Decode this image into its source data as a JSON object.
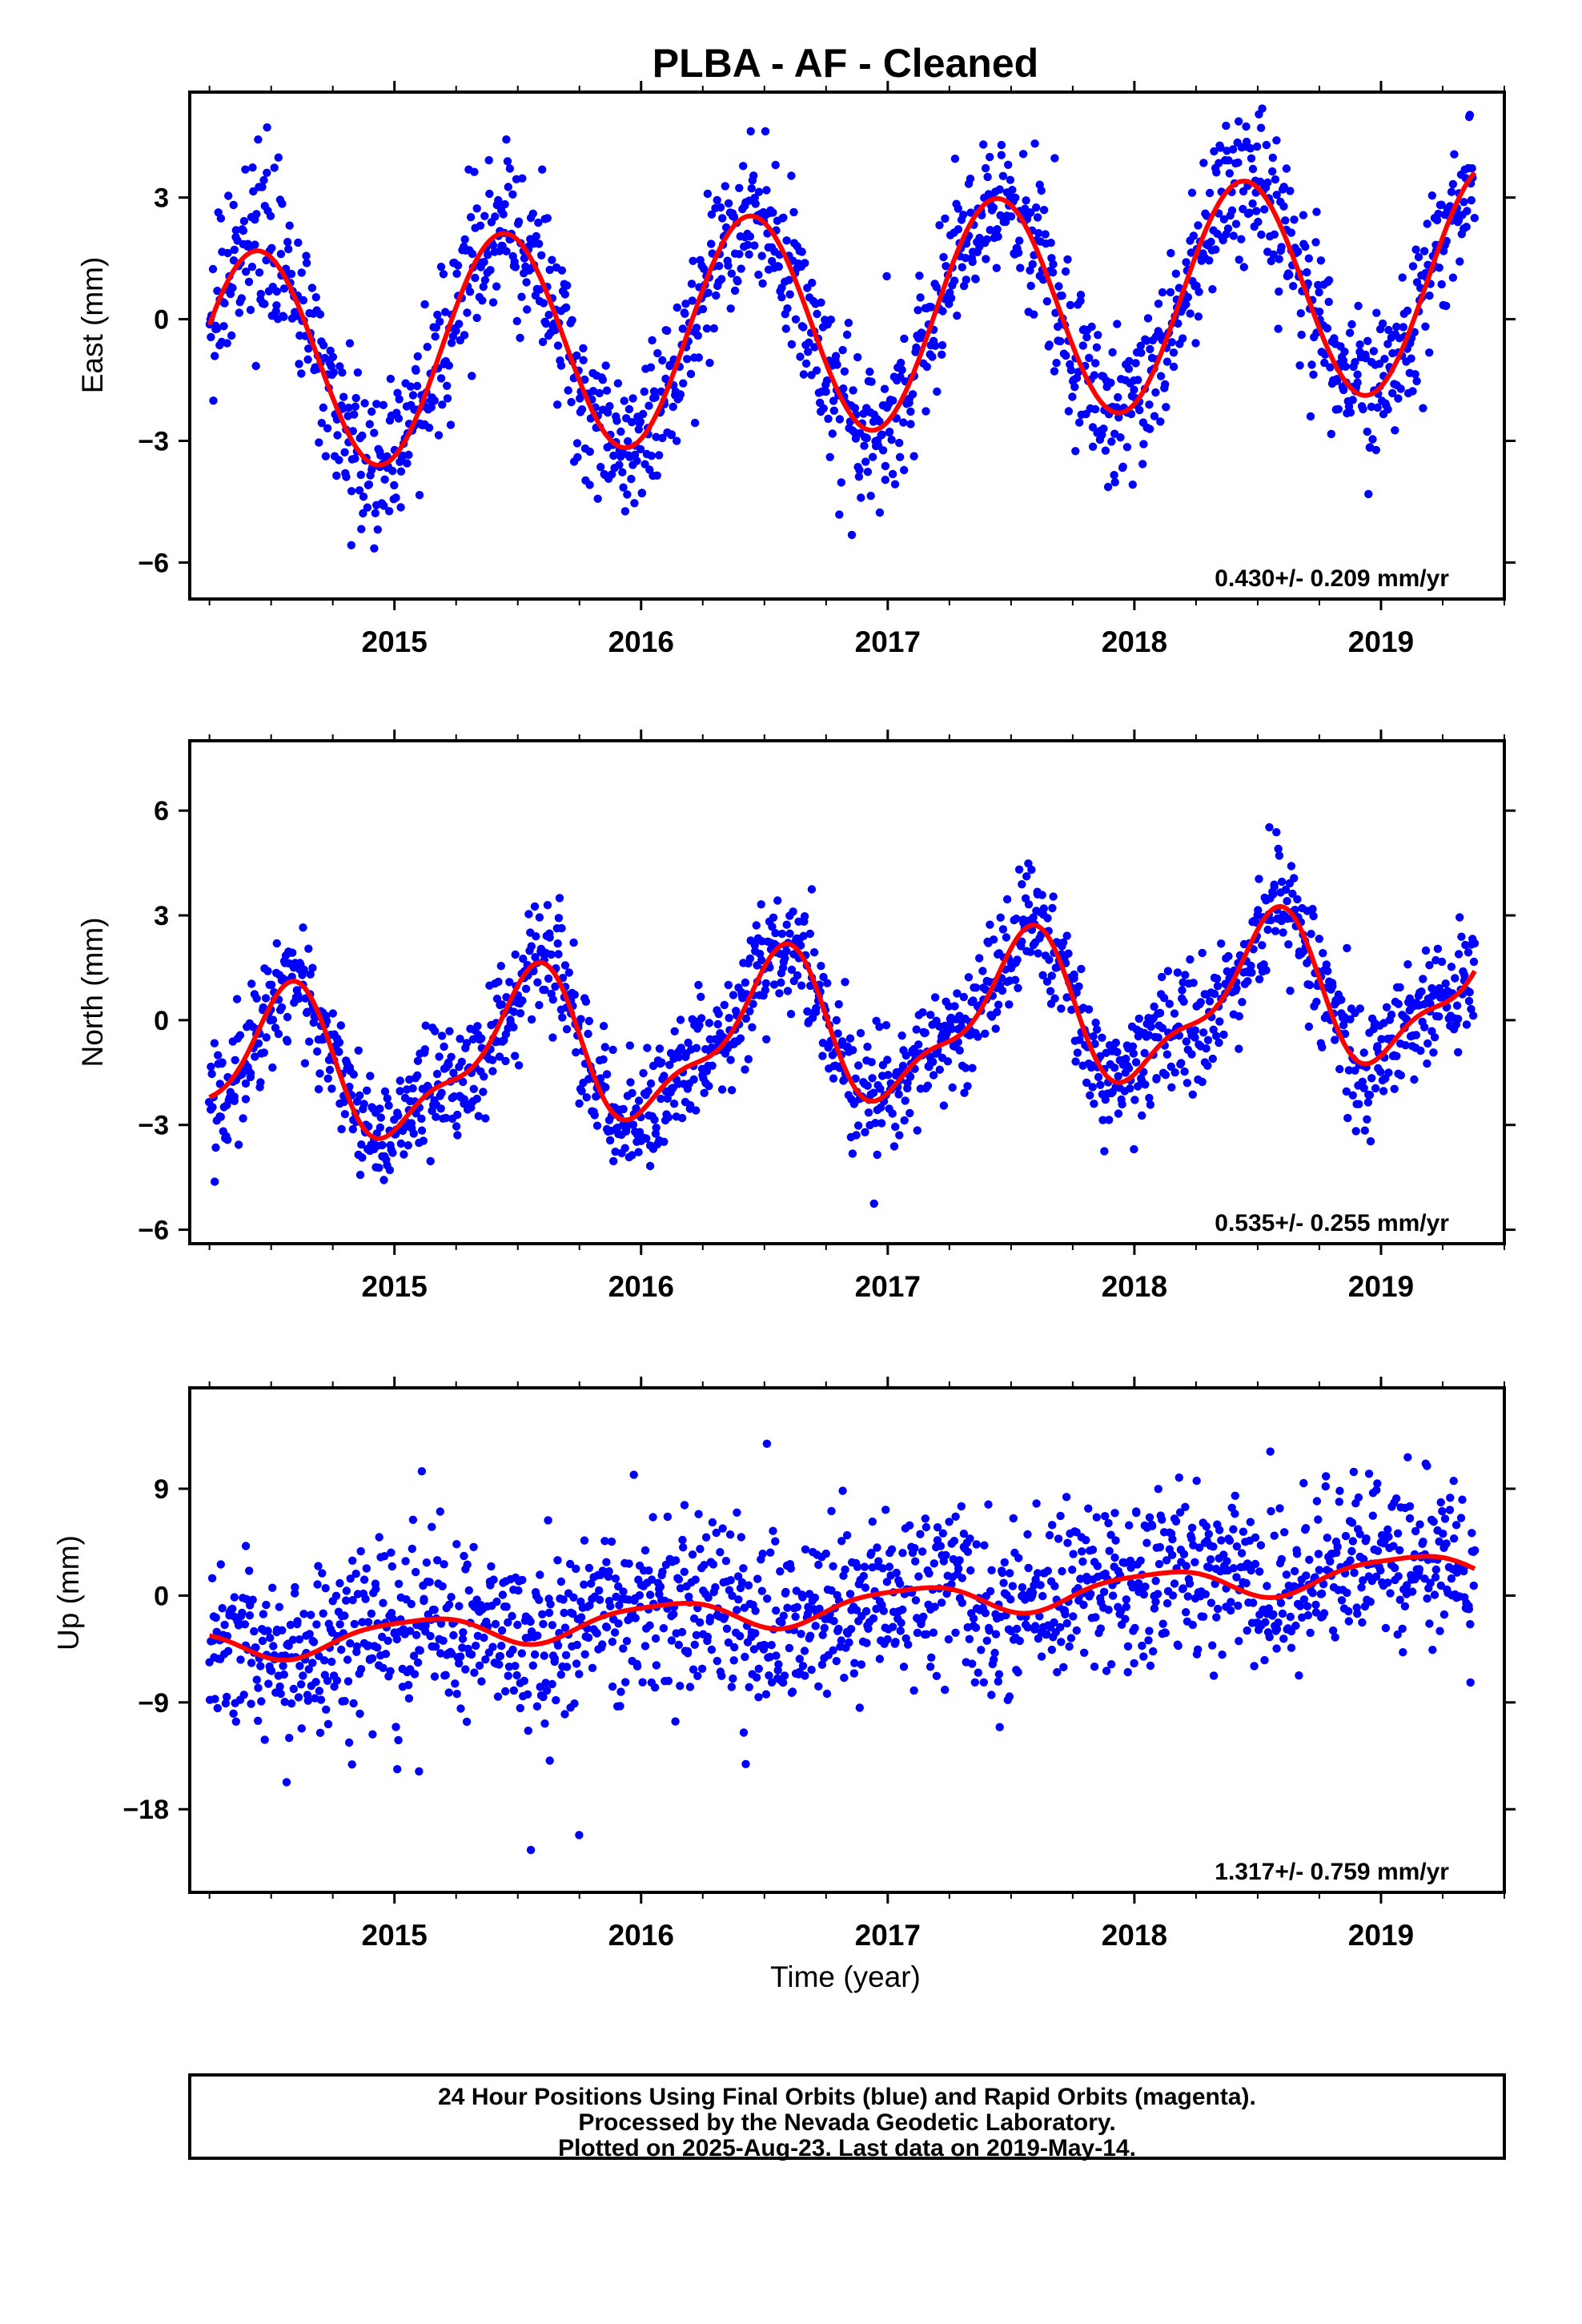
{
  "title": "PLBA  - AF - Cleaned",
  "footer": {
    "line1": "24 Hour Positions Using Final Orbits (blue) and Rapid Orbits (magenta).",
    "line2": "Processed by the Nevada Geodetic Laboratory.",
    "line3": "Plotted on 2025-Aug-23. Last data on 2019-May-14."
  },
  "colors": {
    "data_points": "#0000ff",
    "model_curve": "#ff0000",
    "axes": "#000000"
  },
  "chart_data": [
    {
      "type": "scatter",
      "panel": "east",
      "ylabel": "East (mm)",
      "xlabel": "",
      "xlim": [
        2014.17,
        2019.5
      ],
      "ylim": [
        -6.9,
        5.6
      ],
      "xticks": [
        2015,
        2016,
        2017,
        2018,
        2019
      ],
      "yticks": [
        -6,
        -3,
        0,
        3
      ],
      "ytick_labels": [
        "−6",
        "−3",
        "0",
        "3"
      ],
      "rate_label": "0.430+/- 0.209 mm/yr",
      "model": {
        "mean": -0.05,
        "annual_amp": 2.75,
        "peak_year_fraction": 0.44,
        "semiannual_amp": 0.0,
        "semiannual_phase": 0.0,
        "trend": 0.43,
        "t0": 2016.8,
        "start": 2014.25,
        "end": 2019.38
      },
      "scatter": {
        "noise_sd": 0.95,
        "n_points": 1550,
        "start": 2014.25,
        "end": 2019.38
      },
      "series": [
        {
          "name": "24 Hour Positions Using Final Orbits (blue)",
          "kind": "points",
          "color": "#0000ff"
        },
        {
          "name": "model",
          "kind": "line",
          "color": "#ff0000"
        }
      ]
    },
    {
      "type": "scatter",
      "panel": "north",
      "ylabel": "North (mm)",
      "xlabel": "",
      "xlim": [
        2014.17,
        2019.5
      ],
      "ylim": [
        -6.4,
        8.0
      ],
      "xticks": [
        2015,
        2016,
        2017,
        2018,
        2019
      ],
      "yticks": [
        -6,
        -3,
        0,
        3,
        6
      ],
      "ytick_labels": [
        "−6",
        "−3",
        "0",
        "3",
        "6"
      ],
      "rate_label": "0.535+/- 0.255 mm/yr",
      "model": {
        "mean": -0.3,
        "annual_amp": 2.0,
        "peak_year_fraction": 0.54,
        "semiannual_amp": 0.75,
        "semiannual_phase": 0.62,
        "trend": 0.535,
        "t0": 2016.8,
        "start": 2014.25,
        "end": 2019.38
      },
      "scatter": {
        "noise_sd": 0.85,
        "n_points": 1550,
        "start": 2014.25,
        "end": 2019.38
      },
      "series": [
        {
          "name": "24 Hour Positions Using Final Orbits (blue)",
          "kind": "points",
          "color": "#0000ff"
        },
        {
          "name": "model",
          "kind": "line",
          "color": "#ff0000"
        }
      ]
    },
    {
      "type": "scatter",
      "panel": "up",
      "ylabel": "Up (mm)",
      "xlabel": "Time (year)",
      "xlim": [
        2014.17,
        2019.5
      ],
      "ylim": [
        -25.0,
        17.5
      ],
      "xticks": [
        2015,
        2016,
        2017,
        2018,
        2019
      ],
      "yticks": [
        -18,
        -9,
        0,
        9
      ],
      "ytick_labels": [
        "−18",
        "−9",
        "0",
        "9"
      ],
      "rate_label": "1.317+/- 0.759 mm/yr",
      "model": {
        "mean": -0.9,
        "annual_amp": 1.3,
        "peak_year_fraction": 0.08,
        "semiannual_amp": 0.3,
        "semiannual_phase": 0.3,
        "trend": 1.317,
        "t0": 2016.8,
        "start": 2014.25,
        "end": 2019.38
      },
      "scatter": {
        "noise_sd": 3.6,
        "n_points": 1550,
        "start": 2014.25,
        "end": 2019.38
      },
      "series": [
        {
          "name": "24 Hour Positions Using Final Orbits (blue)",
          "kind": "points",
          "color": "#0000ff"
        },
        {
          "name": "model",
          "kind": "line",
          "color": "#ff0000"
        }
      ]
    }
  ]
}
